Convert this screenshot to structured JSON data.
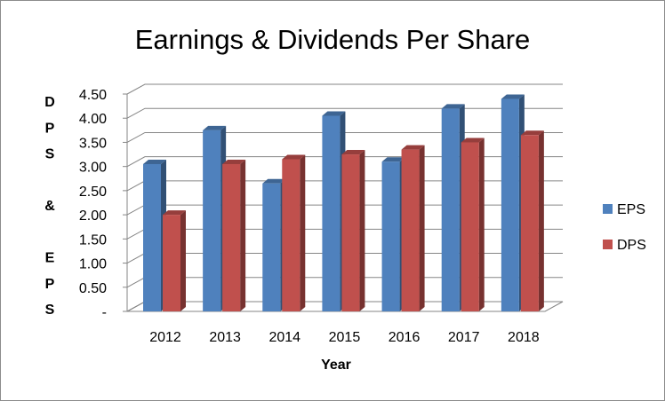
{
  "chart_data": {
    "type": "bar",
    "title": "Earnings & Dividends Per Share",
    "xlabel": "Year",
    "ylabel": "DPS & EPS",
    "ylabel_chars": [
      "D",
      "P",
      "S",
      "",
      "&",
      "",
      "E",
      "P",
      "S"
    ],
    "categories": [
      "2012",
      "2013",
      "2014",
      "2015",
      "2016",
      "2017",
      "2018"
    ],
    "series": [
      {
        "name": "EPS",
        "values": [
          3.05,
          3.75,
          2.65,
          4.05,
          3.1,
          4.2,
          4.4
        ],
        "color": "#4f81bd"
      },
      {
        "name": "DPS",
        "values": [
          2.0,
          3.05,
          3.15,
          3.25,
          3.35,
          3.5,
          3.65
        ],
        "color": "#c0504d"
      }
    ],
    "ylim": [
      0,
      4.5
    ],
    "yticks": [
      "-",
      "0.50",
      "1.00",
      "1.50",
      "2.00",
      "2.50",
      "3.00",
      "3.50",
      "4.00",
      "4.50"
    ],
    "grid": true,
    "legend_position": "right",
    "style": "3d-clustered-column"
  }
}
